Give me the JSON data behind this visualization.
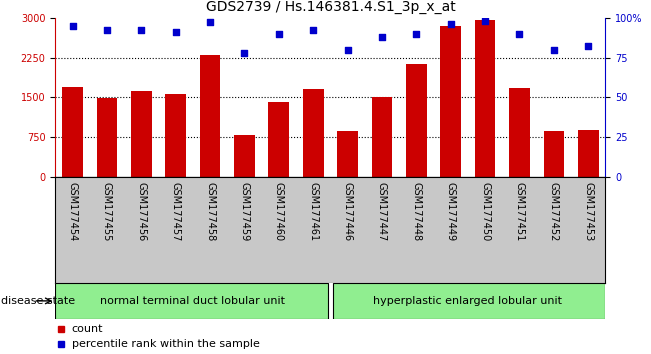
{
  "title": "GDS2739 / Hs.146381.4.S1_3p_x_at",
  "samples": [
    "GSM177454",
    "GSM177455",
    "GSM177456",
    "GSM177457",
    "GSM177458",
    "GSM177459",
    "GSM177460",
    "GSM177461",
    "GSM177446",
    "GSM177447",
    "GSM177448",
    "GSM177449",
    "GSM177450",
    "GSM177451",
    "GSM177452",
    "GSM177453"
  ],
  "bar_values": [
    1700,
    1480,
    1620,
    1570,
    2300,
    800,
    1420,
    1650,
    870,
    1510,
    2120,
    2850,
    2960,
    1680,
    870,
    890
  ],
  "dot_values": [
    95,
    92,
    92,
    91,
    97,
    78,
    90,
    92,
    80,
    88,
    90,
    96,
    98,
    90,
    80,
    82
  ],
  "bar_color": "#cc0000",
  "dot_color": "#0000cc",
  "ylim_left": [
    0,
    3000
  ],
  "ylim_right": [
    0,
    100
  ],
  "yticks_left": [
    0,
    750,
    1500,
    2250,
    3000
  ],
  "yticks_right": [
    0,
    25,
    50,
    75,
    100
  ],
  "yticklabels_right": [
    "0",
    "25",
    "50",
    "75",
    "100%"
  ],
  "grid_values": [
    750,
    1500,
    2250
  ],
  "group1_label": "normal terminal duct lobular unit",
  "group2_label": "hyperplastic enlarged lobular unit",
  "group1_count": 8,
  "group2_count": 8,
  "disease_state_label": "disease state",
  "legend_bar_label": "count",
  "legend_dot_label": "percentile rank within the sample",
  "bg_color": "#ffffff",
  "tick_area_color": "#c8c8c8",
  "group1_color": "#90ee90",
  "group2_color": "#90ee90",
  "title_fontsize": 10,
  "tick_fontsize": 7,
  "label_fontsize": 8
}
